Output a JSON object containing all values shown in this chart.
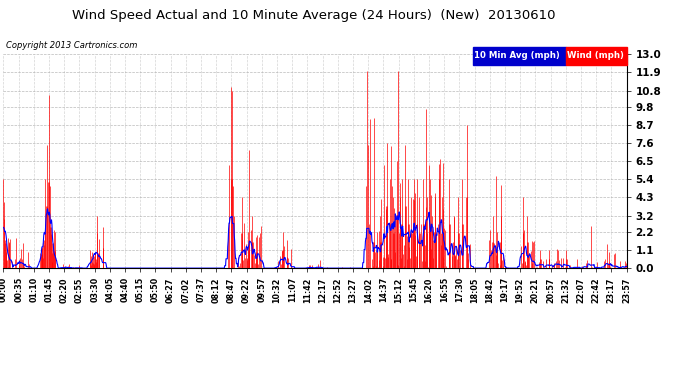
{
  "title": "Wind Speed Actual and 10 Minute Average (24 Hours)  (New)  20130610",
  "copyright": "Copyright 2013 Cartronics.com",
  "legend_labels": [
    "10 Min Avg (mph)",
    "Wind (mph)"
  ],
  "legend_colors": [
    "#0000ff",
    "#ff0000"
  ],
  "legend_bg_blue": "#0000cc",
  "legend_bg_red": "#ff0000",
  "yticks": [
    0.0,
    1.1,
    2.2,
    3.2,
    4.3,
    5.4,
    6.5,
    7.6,
    8.7,
    9.8,
    10.8,
    11.9,
    13.0
  ],
  "ymax": 13.0,
  "ymin": 0.0,
  "bg_color": "#ffffff",
  "plot_bg_color": "#ffffff",
  "grid_color": "#aaaaaa",
  "wind_color": "#ff0000",
  "avg_color": "#0000ff",
  "title_fontsize": 11,
  "tick_label_fontsize": 7.5,
  "time_labels": [
    "00:00",
    "00:35",
    "01:10",
    "01:45",
    "02:20",
    "02:55",
    "03:30",
    "04:05",
    "04:40",
    "05:15",
    "05:50",
    "06:27",
    "07:02",
    "07:37",
    "08:12",
    "08:47",
    "09:22",
    "09:57",
    "10:32",
    "11:07",
    "11:42",
    "12:17",
    "12:52",
    "13:27",
    "14:02",
    "14:37",
    "15:12",
    "15:45",
    "16:20",
    "16:55",
    "17:30",
    "18:05",
    "18:42",
    "19:17",
    "19:52",
    "20:21",
    "20:57",
    "21:32",
    "22:07",
    "22:42",
    "23:17",
    "23:57"
  ]
}
